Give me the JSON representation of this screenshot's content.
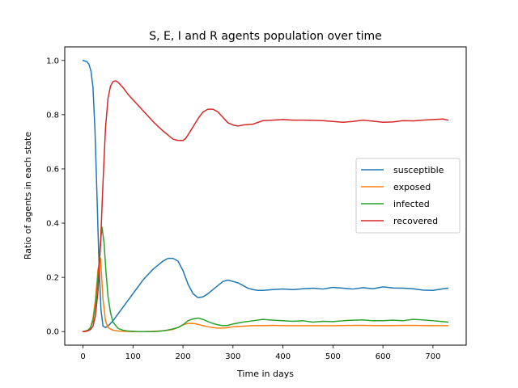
{
  "chart_data": {
    "type": "line",
    "title": "S, E, I and R agents population over time",
    "xlabel": "Time in days",
    "ylabel": "Ratio of agents in each state",
    "xlim": [
      -36.5,
      766.5
    ],
    "ylim": [
      -0.05,
      1.05
    ],
    "xticks": [
      0,
      100,
      200,
      300,
      400,
      500,
      600,
      700
    ],
    "yticks": [
      "0.0",
      "0.2",
      "0.4",
      "0.6",
      "0.8",
      "1.0"
    ],
    "grid": false,
    "legend_position": "center-right",
    "series": [
      {
        "name": "susceptible",
        "color": "#1f77b4",
        "x": [
          0,
          8,
          12,
          16,
          20,
          24,
          28,
          32,
          36,
          40,
          45,
          50,
          60,
          70,
          80,
          90,
          100,
          110,
          120,
          130,
          140,
          150,
          160,
          170,
          180,
          190,
          200,
          210,
          220,
          230,
          240,
          250,
          260,
          270,
          280,
          290,
          300,
          310,
          320,
          330,
          340,
          350,
          360,
          380,
          400,
          420,
          440,
          460,
          480,
          500,
          520,
          540,
          560,
          580,
          600,
          620,
          640,
          660,
          680,
          700,
          720,
          730
        ],
        "y": [
          1.0,
          0.995,
          0.985,
          0.96,
          0.9,
          0.74,
          0.5,
          0.25,
          0.08,
          0.02,
          0.015,
          0.02,
          0.04,
          0.065,
          0.09,
          0.115,
          0.14,
          0.165,
          0.19,
          0.21,
          0.23,
          0.245,
          0.26,
          0.27,
          0.27,
          0.26,
          0.225,
          0.175,
          0.14,
          0.125,
          0.128,
          0.14,
          0.155,
          0.17,
          0.185,
          0.19,
          0.185,
          0.18,
          0.17,
          0.16,
          0.155,
          0.152,
          0.152,
          0.155,
          0.157,
          0.155,
          0.158,
          0.16,
          0.157,
          0.163,
          0.16,
          0.157,
          0.162,
          0.158,
          0.165,
          0.161,
          0.16,
          0.158,
          0.153,
          0.152,
          0.158,
          0.16
        ]
      },
      {
        "name": "exposed",
        "color": "#ff7f0e",
        "x": [
          0,
          5,
          10,
          15,
          20,
          25,
          30,
          35,
          40,
          45,
          50,
          60,
          70,
          80,
          100,
          120,
          140,
          160,
          170,
          180,
          190,
          200,
          210,
          220,
          230,
          240,
          250,
          260,
          270,
          280,
          290,
          300,
          320,
          340,
          360,
          380,
          400,
          450,
          500,
          550,
          600,
          650,
          700,
          730
        ],
        "y": [
          0.0,
          0.0,
          0.005,
          0.015,
          0.05,
          0.12,
          0.23,
          0.27,
          0.12,
          0.04,
          0.015,
          0.005,
          0.002,
          0.001,
          0.0,
          0.0,
          0.001,
          0.003,
          0.005,
          0.008,
          0.015,
          0.025,
          0.03,
          0.03,
          0.027,
          0.022,
          0.018,
          0.015,
          0.013,
          0.013,
          0.015,
          0.018,
          0.02,
          0.022,
          0.022,
          0.023,
          0.022,
          0.022,
          0.022,
          0.023,
          0.022,
          0.023,
          0.022,
          0.022
        ]
      },
      {
        "name": "infected",
        "color": "#2ca02c",
        "x": [
          0,
          10,
          15,
          20,
          25,
          30,
          35,
          38,
          42,
          46,
          50,
          55,
          60,
          70,
          80,
          90,
          100,
          110,
          120,
          130,
          140,
          150,
          160,
          170,
          180,
          190,
          200,
          210,
          220,
          230,
          240,
          250,
          260,
          270,
          280,
          290,
          300,
          320,
          340,
          360,
          380,
          400,
          420,
          440,
          460,
          480,
          500,
          520,
          540,
          560,
          580,
          600,
          620,
          640,
          660,
          680,
          700,
          720,
          730
        ],
        "y": [
          0.0,
          0.005,
          0.015,
          0.04,
          0.1,
          0.2,
          0.33,
          0.385,
          0.33,
          0.22,
          0.13,
          0.07,
          0.035,
          0.012,
          0.005,
          0.002,
          0.001,
          0.0,
          0.0,
          0.0,
          0.0,
          0.001,
          0.003,
          0.006,
          0.01,
          0.015,
          0.025,
          0.04,
          0.047,
          0.05,
          0.045,
          0.037,
          0.03,
          0.025,
          0.022,
          0.023,
          0.028,
          0.035,
          0.04,
          0.045,
          0.042,
          0.04,
          0.038,
          0.04,
          0.035,
          0.038,
          0.037,
          0.04,
          0.042,
          0.043,
          0.04,
          0.04,
          0.042,
          0.04,
          0.045,
          0.043,
          0.04,
          0.037,
          0.035
        ]
      },
      {
        "name": "recovered",
        "color": "#d62728",
        "x": [
          0,
          10,
          15,
          20,
          25,
          30,
          35,
          40,
          45,
          50,
          55,
          60,
          65,
          70,
          75,
          80,
          90,
          100,
          110,
          120,
          130,
          140,
          150,
          160,
          170,
          180,
          190,
          200,
          205,
          210,
          220,
          230,
          240,
          250,
          260,
          270,
          280,
          290,
          300,
          310,
          320,
          340,
          360,
          380,
          400,
          420,
          440,
          460,
          480,
          500,
          520,
          540,
          560,
          580,
          600,
          620,
          640,
          660,
          680,
          700,
          720,
          730
        ],
        "y": [
          0.0,
          0.003,
          0.008,
          0.02,
          0.06,
          0.15,
          0.32,
          0.55,
          0.75,
          0.86,
          0.905,
          0.922,
          0.925,
          0.92,
          0.91,
          0.9,
          0.875,
          0.855,
          0.835,
          0.815,
          0.795,
          0.775,
          0.757,
          0.74,
          0.725,
          0.71,
          0.705,
          0.705,
          0.712,
          0.725,
          0.755,
          0.785,
          0.81,
          0.82,
          0.82,
          0.81,
          0.79,
          0.77,
          0.762,
          0.758,
          0.762,
          0.765,
          0.778,
          0.78,
          0.782,
          0.78,
          0.78,
          0.779,
          0.778,
          0.775,
          0.772,
          0.775,
          0.78,
          0.776,
          0.772,
          0.773,
          0.778,
          0.777,
          0.78,
          0.782,
          0.784,
          0.78
        ]
      }
    ]
  }
}
